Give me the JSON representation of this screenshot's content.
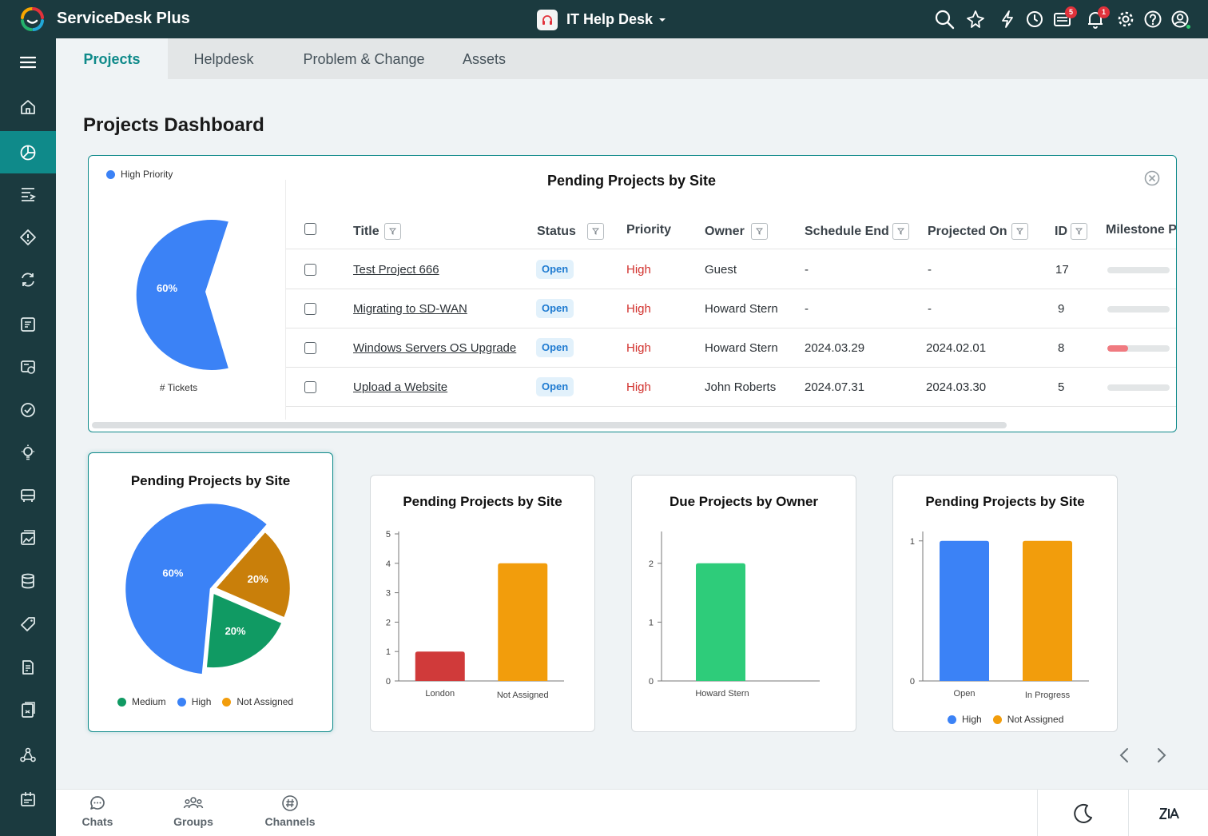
{
  "app": {
    "title": "ServiceDesk Plus",
    "desk": "IT Help Desk"
  },
  "topbar": {
    "icons": [
      "search-icon",
      "magic-icon",
      "lightning-icon",
      "history-icon",
      "announcements-icon",
      "notifications-icon",
      "settings-icon",
      "help-icon",
      "profile-icon"
    ],
    "announcements_count": "5",
    "notifications_count": "1"
  },
  "sidebar": {
    "items": [
      "menu-icon",
      "home-icon",
      "dashboard-icon",
      "requests-icon",
      "problems-icon",
      "changes-icon",
      "projects-icon",
      "releases-icon",
      "maintenance-icon",
      "solutions-icon",
      "assets-icon",
      "cmdb-icon",
      "database-icon",
      "purchase-icon",
      "contracts-icon",
      "reports-icon",
      "admin-icon",
      "timesheet-icon"
    ]
  },
  "tabs": [
    "Projects",
    "Helpdesk",
    "Problem & Change",
    "Assets"
  ],
  "page_title": "Projects Dashboard",
  "table_widget": {
    "title": "Pending Projects by Site",
    "mini_chart": {
      "legend": "High Priority",
      "slice_label": "60%",
      "caption": "# Tickets"
    },
    "columns": [
      "Title",
      "Status",
      "Priority",
      "Owner",
      "Schedule End",
      "Projected On",
      "ID",
      "Milestone P"
    ],
    "rows": [
      {
        "title": "Test Project 666",
        "status": "Open",
        "priority": "High",
        "owner": "Guest",
        "schedule_end": "-",
        "projected_on": "-",
        "id": "17",
        "milestone": 0
      },
      {
        "title": "Migrating to SD-WAN",
        "status": "Open",
        "priority": "High",
        "owner": "Howard Stern",
        "schedule_end": "-",
        "projected_on": "-",
        "id": "9",
        "milestone": 0
      },
      {
        "title": "Windows Servers OS Upgrade",
        "status": "Open",
        "priority": "High",
        "owner": "Howard Stern",
        "schedule_end": "2024.03.29",
        "projected_on": "2024.02.01",
        "id": "8",
        "milestone": 0.33
      },
      {
        "title": "Upload a Website",
        "status": "Open",
        "priority": "High",
        "owner": "John Roberts",
        "schedule_end": "2024.07.31",
        "projected_on": "2024.03.30",
        "id": "5",
        "milestone": 0
      }
    ]
  },
  "chart_data": [
    {
      "type": "pie",
      "title": "Pending Projects by Site",
      "slices": [
        {
          "name": "High",
          "value": 60,
          "label": "60%",
          "color": "#3b82f6"
        },
        {
          "name": "Not Assigned",
          "value": 20,
          "label": "20%",
          "color": "#c97f0a"
        },
        {
          "name": "Medium",
          "value": 20,
          "label": "20%",
          "color": "#109a63"
        }
      ],
      "legend": [
        "Medium",
        "High",
        "Not Assigned"
      ],
      "legend_position": "bottom"
    },
    {
      "type": "bar",
      "title": "Pending Projects by Site",
      "categories": [
        "London",
        "Not Assigned"
      ],
      "values": [
        1,
        4
      ],
      "colors": [
        "#d03a3a",
        "#f29d0c"
      ],
      "ylim": [
        0,
        5
      ],
      "yticks": [
        0,
        1,
        2,
        3,
        4,
        5
      ]
    },
    {
      "type": "bar",
      "title": "Due Projects by Owner",
      "categories": [
        "Howard Stern"
      ],
      "values": [
        2
      ],
      "colors": [
        "#2ecc7a"
      ],
      "ylim": [
        0,
        2.5
      ],
      "yticks": [
        0,
        1,
        2
      ]
    },
    {
      "type": "bar",
      "title": "Pending Projects by Site",
      "categories": [
        "Open",
        "In Progress"
      ],
      "series": [
        {
          "name": "High",
          "values": [
            1,
            0
          ],
          "color": "#3b82f6"
        },
        {
          "name": "Not Assigned",
          "values": [
            0,
            1
          ],
          "color": "#f29d0c"
        }
      ],
      "ylim": [
        0,
        1.05
      ],
      "yticks": [
        0,
        1
      ],
      "legend_position": "bottom"
    }
  ],
  "bottom_bar": {
    "items": [
      "Chats",
      "Groups",
      "Channels"
    ],
    "right_icons": [
      "dark-mode-icon",
      "zia-icon"
    ]
  },
  "colors": {
    "brand": "#1b3a3f",
    "accent": "#0f8a8a",
    "high": "#d1302c"
  }
}
